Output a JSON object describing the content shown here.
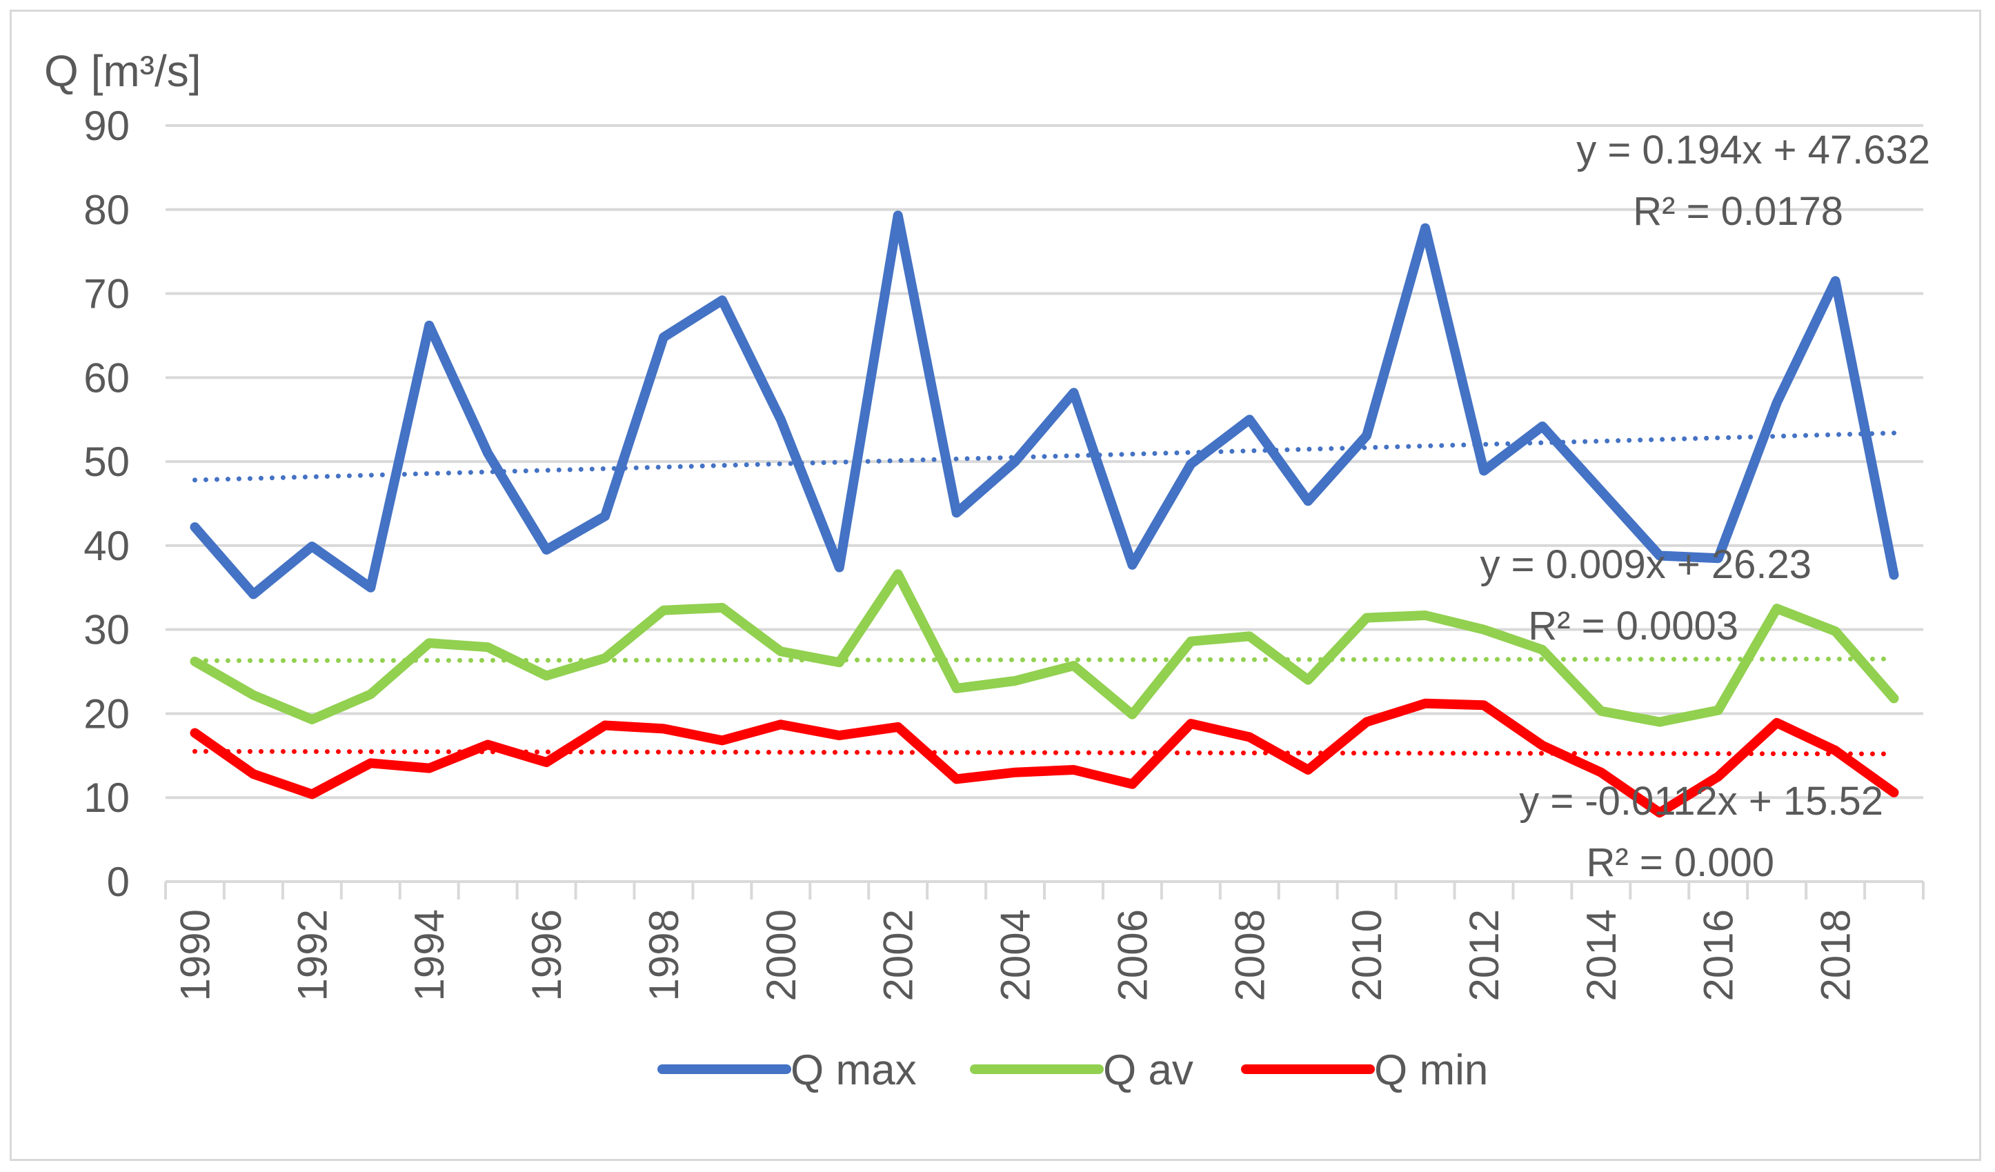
{
  "chart_data": {
    "type": "line",
    "ylabel": "Q [m³/s]",
    "ylim": [
      0,
      90
    ],
    "yticks": [
      0,
      10,
      20,
      30,
      40,
      50,
      60,
      70,
      80,
      90
    ],
    "grid": true,
    "legend_position": "bottom",
    "x": [
      1990,
      1991,
      1992,
      1993,
      1994,
      1995,
      1996,
      1997,
      1998,
      1999,
      2000,
      2001,
      2002,
      2003,
      2004,
      2005,
      2006,
      2007,
      2008,
      2009,
      2010,
      2011,
      2012,
      2013,
      2014,
      2015,
      2016,
      2017,
      2018,
      2019
    ],
    "xtick_labels": [
      "1990",
      "1992",
      "1994",
      "1996",
      "1998",
      "2000",
      "2002",
      "2004",
      "2006",
      "2008",
      "2010",
      "2012",
      "2014",
      "2016",
      "2018"
    ],
    "series": [
      {
        "name": "Q max",
        "color": "#4472c4",
        "values": [
          42.2,
          34.2,
          39.9,
          35.0,
          66.2,
          51.0,
          39.5,
          43.5,
          64.8,
          69.2,
          55.0,
          37.4,
          79.3,
          43.9,
          50.0,
          58.2,
          37.7,
          49.7,
          55.0,
          45.3,
          53.1,
          77.8,
          48.9,
          54.2,
          46.5,
          38.8,
          38.5,
          57.0,
          71.5,
          36.5
        ],
        "trend": {
          "start": 47.8,
          "end": 53.4,
          "equation": "y = 0.194x + 47.632",
          "r2": "R² = 0.0178"
        }
      },
      {
        "name": "Q av",
        "color": "#92d050",
        "values": [
          26.2,
          22.2,
          19.3,
          22.3,
          28.4,
          27.9,
          24.5,
          26.6,
          32.3,
          32.6,
          27.4,
          26.1,
          36.6,
          23.0,
          23.9,
          25.7,
          19.9,
          28.6,
          29.2,
          24.0,
          31.4,
          31.7,
          30.0,
          27.6,
          20.3,
          19.0,
          20.4,
          32.5,
          29.8,
          21.8
        ],
        "trend": {
          "start": 26.3,
          "end": 26.5,
          "equation": "y = 0.009x + 26.23",
          "r2": "R² = 0.0003"
        }
      },
      {
        "name": "Q min",
        "color": "#ff0000",
        "values": [
          17.7,
          12.8,
          10.4,
          14.1,
          13.5,
          16.3,
          14.2,
          18.6,
          18.2,
          16.8,
          18.7,
          17.4,
          18.4,
          12.2,
          13.0,
          13.3,
          11.6,
          18.8,
          17.2,
          13.3,
          19.0,
          21.2,
          21.0,
          16.2,
          13.0,
          8.2,
          12.5,
          18.9,
          15.6,
          10.6
        ],
        "trend": {
          "start": 15.5,
          "end": 15.2,
          "equation": "y = -0.0112x + 15.52",
          "r2": "R² = 0.000"
        }
      }
    ]
  }
}
